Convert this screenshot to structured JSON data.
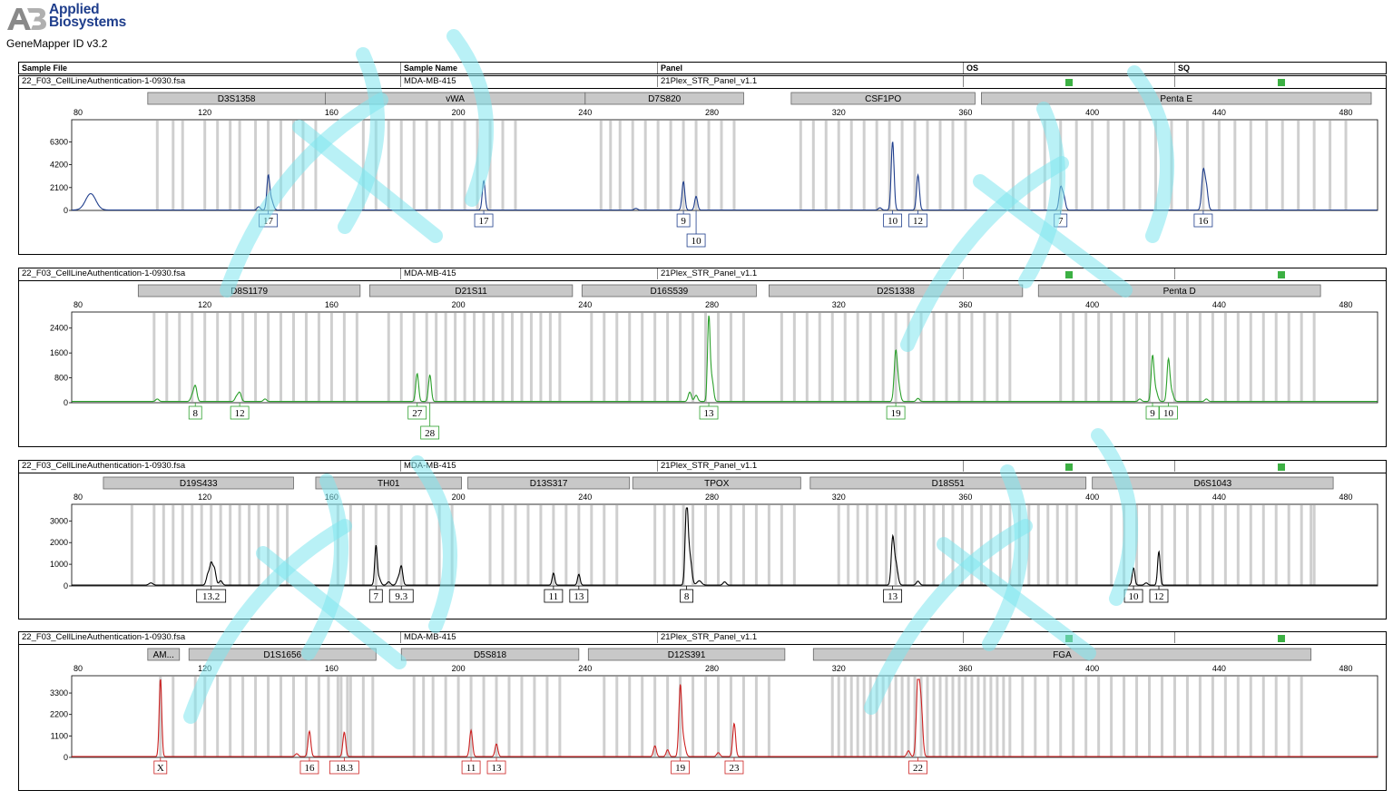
{
  "app": {
    "brand_line1": "Applied",
    "brand_line2": "Biosystems",
    "software": "GeneMapper ID v3.2"
  },
  "header": {
    "columns": [
      "Sample File",
      "Sample Name",
      "Panel",
      "OS",
      "SQ"
    ]
  },
  "x_ticks": [
    80,
    120,
    160,
    200,
    240,
    280,
    320,
    360,
    400,
    440,
    480
  ],
  "x_range": [
    78,
    490
  ],
  "colors": {
    "blue": "#1f3e8c",
    "green": "#2ca02c",
    "black": "#000000",
    "red": "#cc2222",
    "bin": "#cfcfcf",
    "marker_box": "#c8c8c8",
    "status_green": "#3cb043"
  },
  "panels": [
    {
      "sample_file": "22_F03_CellLineAuthentication-1-0930.fsa",
      "sample_name": "MDA-MB-415",
      "panel": "21Plex_STR_Panel_v1.1"
    },
    {
      "sample_file": "22_F03_CellLineAuthentication-1-0930.fsa",
      "sample_name": "MDA-MB-415",
      "panel": "21Plex_STR_Panel_v1.1"
    },
    {
      "sample_file": "22_F03_CellLineAuthentication-1-0930.fsa",
      "sample_name": "MDA-MB-415",
      "panel": "21Plex_STR_Panel_v1.1"
    },
    {
      "sample_file": "22_F03_CellLineAuthentication-1-0930.fsa",
      "sample_name": "MDA-MB-415",
      "panel": "21Plex_STR_Panel_v1.1"
    }
  ],
  "chart_data": [
    {
      "type": "line",
      "dye": "blue",
      "ylim": [
        0,
        8000
      ],
      "y_ticks": [
        0,
        2100,
        4200,
        6300
      ],
      "markers": [
        {
          "name": "D3S1358",
          "start": 102,
          "end": 158
        },
        {
          "name": "vWA",
          "start": 158,
          "end": 240
        },
        {
          "name": "D7S820",
          "start": 240,
          "end": 290
        },
        {
          "name": "CSF1PO",
          "start": 305,
          "end": 363
        },
        {
          "name": "Penta E",
          "start": 365,
          "end": 488
        }
      ],
      "bins": [
        105,
        110,
        113,
        120,
        124,
        128,
        131,
        136,
        140,
        144,
        148,
        151,
        155,
        170,
        174,
        178,
        182,
        186,
        190,
        194,
        198,
        202,
        206,
        210,
        214,
        218,
        245,
        248,
        251,
        255,
        259,
        263,
        267,
        271,
        275,
        279,
        283,
        287,
        308,
        312,
        316,
        320,
        324,
        328,
        332,
        336,
        340,
        344,
        348,
        352,
        356,
        360,
        375,
        380,
        385,
        390,
        395,
        400,
        405,
        410,
        415,
        420,
        425,
        430,
        435,
        440,
        445,
        450,
        455,
        460,
        465,
        470,
        475,
        480
      ],
      "peaks": [
        {
          "x": 84,
          "y": 1500,
          "w": 1.6
        },
        {
          "x": 140,
          "y": 3000,
          "w": 0.45
        },
        {
          "x": 141,
          "y": 900,
          "w": 0.6
        },
        {
          "x": 137,
          "y": 300,
          "w": 0.5
        },
        {
          "x": 208,
          "y": 2700,
          "w": 0.45
        },
        {
          "x": 271,
          "y": 2600,
          "w": 0.45
        },
        {
          "x": 275,
          "y": 1250,
          "w": 0.45
        },
        {
          "x": 256,
          "y": 150,
          "w": 0.5
        },
        {
          "x": 337,
          "y": 6300,
          "w": 0.45
        },
        {
          "x": 345,
          "y": 3200,
          "w": 0.45
        },
        {
          "x": 333,
          "y": 200,
          "w": 0.5
        },
        {
          "x": 390,
          "y": 2000,
          "w": 0.5
        },
        {
          "x": 391,
          "y": 1200,
          "w": 0.5
        },
        {
          "x": 435,
          "y": 3500,
          "w": 0.5
        },
        {
          "x": 436,
          "y": 2000,
          "w": 0.5
        }
      ],
      "alleles": [
        {
          "label": "17",
          "x": 140,
          "row": 0
        },
        {
          "label": "17",
          "x": 208,
          "row": 0
        },
        {
          "label": "9",
          "x": 271,
          "row": 0
        },
        {
          "label": "10",
          "x": 275,
          "row": 1
        },
        {
          "label": "10",
          "x": 337,
          "row": 0
        },
        {
          "label": "12",
          "x": 345,
          "row": 0
        },
        {
          "label": "7",
          "x": 390,
          "row": 0
        },
        {
          "label": "16",
          "x": 435,
          "row": 0
        }
      ]
    },
    {
      "type": "line",
      "dye": "green",
      "ylim": [
        0,
        2800
      ],
      "y_ticks": [
        0,
        800,
        1600,
        2400
      ],
      "markers": [
        {
          "name": "D8S1179",
          "start": 99,
          "end": 169
        },
        {
          "name": "D21S11",
          "start": 172,
          "end": 236
        },
        {
          "name": "D16S539",
          "start": 239,
          "end": 294
        },
        {
          "name": "D2S1338",
          "start": 298,
          "end": 378
        },
        {
          "name": "Penta D",
          "start": 383,
          "end": 472
        }
      ],
      "bins": [
        104,
        108,
        112,
        116,
        120,
        124,
        128,
        132,
        136,
        140,
        144,
        148,
        152,
        156,
        160,
        164,
        168,
        178,
        182,
        186,
        190,
        193,
        196,
        199,
        202,
        205,
        208,
        211,
        214,
        217,
        220,
        223,
        226,
        229,
        232,
        242,
        246,
        250,
        254,
        258,
        262,
        266,
        270,
        274,
        278,
        282,
        286,
        290,
        302,
        306,
        310,
        314,
        318,
        322,
        326,
        330,
        334,
        338,
        342,
        346,
        350,
        354,
        358,
        362,
        366,
        370,
        374,
        390,
        394,
        398,
        402,
        406,
        410,
        414,
        418,
        422,
        426,
        430,
        434,
        438,
        442,
        446,
        450,
        454,
        458,
        462,
        466,
        470
      ],
      "peaks": [
        {
          "x": 117,
          "y": 500,
          "w": 0.5
        },
        {
          "x": 116,
          "y": 180,
          "w": 0.5
        },
        {
          "x": 131,
          "y": 280,
          "w": 0.5
        },
        {
          "x": 130,
          "y": 150,
          "w": 0.5
        },
        {
          "x": 105,
          "y": 80,
          "w": 0.5
        },
        {
          "x": 139,
          "y": 80,
          "w": 0.5
        },
        {
          "x": 187,
          "y": 900,
          "w": 0.45
        },
        {
          "x": 191,
          "y": 850,
          "w": 0.45
        },
        {
          "x": 279,
          "y": 2700,
          "w": 0.4
        },
        {
          "x": 280,
          "y": 700,
          "w": 0.5
        },
        {
          "x": 273,
          "y": 300,
          "w": 0.5
        },
        {
          "x": 275,
          "y": 200,
          "w": 0.5
        },
        {
          "x": 338,
          "y": 1600,
          "w": 0.5
        },
        {
          "x": 339,
          "y": 400,
          "w": 0.5
        },
        {
          "x": 345,
          "y": 100,
          "w": 0.5
        },
        {
          "x": 419,
          "y": 1400,
          "w": 0.45
        },
        {
          "x": 424,
          "y": 1300,
          "w": 0.45
        },
        {
          "x": 420,
          "y": 350,
          "w": 0.6
        },
        {
          "x": 425,
          "y": 300,
          "w": 0.6
        },
        {
          "x": 415,
          "y": 80,
          "w": 0.5
        },
        {
          "x": 436,
          "y": 80,
          "w": 0.5
        }
      ],
      "alleles": [
        {
          "label": "8",
          "x": 117,
          "row": 0
        },
        {
          "label": "12",
          "x": 131,
          "row": 0
        },
        {
          "label": "27",
          "x": 187,
          "row": 0
        },
        {
          "label": "28",
          "x": 191,
          "row": 1
        },
        {
          "label": "13",
          "x": 279,
          "row": 0
        },
        {
          "label": "19",
          "x": 338,
          "row": 0
        },
        {
          "label": "9",
          "x": 419,
          "row": 0
        },
        {
          "label": "10",
          "x": 424,
          "row": 0
        }
      ]
    },
    {
      "type": "line",
      "dye": "black",
      "ylim": [
        0,
        3600
      ],
      "y_ticks": [
        0,
        1000,
        2000,
        3000
      ],
      "markers": [
        {
          "name": "D19S433",
          "start": 88,
          "end": 148
        },
        {
          "name": "TH01",
          "start": 155,
          "end": 201
        },
        {
          "name": "D13S317",
          "start": 203,
          "end": 254
        },
        {
          "name": "TPOX",
          "start": 255,
          "end": 308
        },
        {
          "name": "D18S51",
          "start": 311,
          "end": 398
        },
        {
          "name": "D6S1043",
          "start": 400,
          "end": 476
        }
      ],
      "bins": [
        97,
        104,
        107,
        110,
        113,
        116,
        119,
        122,
        125,
        128,
        131,
        134,
        137,
        140,
        143,
        146,
        162,
        166,
        170,
        174,
        178,
        182,
        186,
        190,
        194,
        198,
        210,
        214,
        218,
        222,
        226,
        230,
        234,
        238,
        242,
        246,
        250,
        262,
        265,
        268,
        271,
        274,
        278,
        282,
        286,
        290,
        294,
        298,
        302,
        306,
        320,
        323,
        326,
        329,
        332,
        335,
        338,
        341,
        344,
        347,
        350,
        353,
        356,
        359,
        362,
        365,
        368,
        371,
        374,
        377,
        380,
        383,
        386,
        389,
        392,
        395,
        406,
        410,
        414,
        418,
        422,
        426,
        430,
        434,
        438,
        442,
        446,
        450,
        454,
        458,
        462,
        466,
        469,
        470
      ],
      "peaks": [
        {
          "x": 122,
          "y": 900,
          "w": 0.45
        },
        {
          "x": 121,
          "y": 500,
          "w": 0.5
        },
        {
          "x": 123,
          "y": 750,
          "w": 0.5
        },
        {
          "x": 125,
          "y": 200,
          "w": 0.5
        },
        {
          "x": 103,
          "y": 100,
          "w": 0.6
        },
        {
          "x": 174,
          "y": 1800,
          "w": 0.4
        },
        {
          "x": 175,
          "y": 300,
          "w": 0.5
        },
        {
          "x": 182,
          "y": 850,
          "w": 0.45
        },
        {
          "x": 181,
          "y": 300,
          "w": 0.5
        },
        {
          "x": 178,
          "y": 150,
          "w": 0.5
        },
        {
          "x": 230,
          "y": 550,
          "w": 0.4
        },
        {
          "x": 238,
          "y": 500,
          "w": 0.4
        },
        {
          "x": 272,
          "y": 3600,
          "w": 0.45
        },
        {
          "x": 273,
          "y": 1300,
          "w": 0.6
        },
        {
          "x": 276,
          "y": 200,
          "w": 0.7
        },
        {
          "x": 284,
          "y": 150,
          "w": 0.5
        },
        {
          "x": 337,
          "y": 2000,
          "w": 0.45
        },
        {
          "x": 338,
          "y": 1000,
          "w": 0.6
        },
        {
          "x": 345,
          "y": 180,
          "w": 0.5
        },
        {
          "x": 413,
          "y": 800,
          "w": 0.4
        },
        {
          "x": 421,
          "y": 1550,
          "w": 0.4
        },
        {
          "x": 417,
          "y": 100,
          "w": 0.5
        }
      ],
      "alleles": [
        {
          "label": "13.2",
          "x": 122,
          "row": 0
        },
        {
          "label": "7",
          "x": 174,
          "row": 0
        },
        {
          "label": "9.3",
          "x": 182,
          "row": 0
        },
        {
          "label": "11",
          "x": 230,
          "row": 0
        },
        {
          "label": "13",
          "x": 238,
          "row": 0
        },
        {
          "label": "8",
          "x": 272,
          "row": 0
        },
        {
          "label": "13",
          "x": 337,
          "row": 0
        },
        {
          "label": "10",
          "x": 413,
          "row": 0
        },
        {
          "label": "12",
          "x": 421,
          "row": 0
        }
      ]
    },
    {
      "type": "line",
      "dye": "red",
      "ylim": [
        0,
        4000
      ],
      "y_ticks": [
        0,
        1100,
        2200,
        3300
      ],
      "markers": [
        {
          "name": "AM...",
          "start": 102,
          "end": 112
        },
        {
          "name": "D1S1656",
          "start": 115,
          "end": 174
        },
        {
          "name": "D5S818",
          "start": 182,
          "end": 238
        },
        {
          "name": "D12S391",
          "start": 241,
          "end": 303
        },
        {
          "name": "FGA",
          "start": 312,
          "end": 469
        }
      ],
      "bins": [
        106,
        110,
        117,
        120,
        124,
        128,
        132,
        136,
        140,
        144,
        148,
        152,
        156,
        159,
        162,
        163,
        165,
        166,
        170,
        173,
        186,
        189,
        192,
        196,
        200,
        204,
        208,
        212,
        216,
        220,
        224,
        228,
        232,
        246,
        250,
        254,
        258,
        262,
        266,
        270,
        274,
        278,
        282,
        286,
        290,
        294,
        298,
        318,
        320,
        322,
        324,
        326,
        328,
        330,
        332,
        334,
        336,
        338,
        340,
        342,
        344,
        346,
        348,
        350,
        352,
        354,
        356,
        358,
        360,
        362,
        364,
        366,
        368,
        370,
        372,
        374,
        378,
        382,
        386,
        390,
        394,
        398,
        402,
        406,
        410,
        414,
        418,
        422,
        426,
        430,
        434,
        438,
        442,
        446,
        450,
        454,
        458,
        462,
        466
      ],
      "peaks": [
        {
          "x": 106,
          "y": 4000,
          "w": 0.4
        },
        {
          "x": 153,
          "y": 1300,
          "w": 0.45
        },
        {
          "x": 149,
          "y": 150,
          "w": 0.5
        },
        {
          "x": 164,
          "y": 1250,
          "w": 0.45
        },
        {
          "x": 204,
          "y": 1350,
          "w": 0.45
        },
        {
          "x": 212,
          "y": 650,
          "w": 0.45
        },
        {
          "x": 262,
          "y": 550,
          "w": 0.45
        },
        {
          "x": 266,
          "y": 350,
          "w": 0.45
        },
        {
          "x": 270,
          "y": 3500,
          "w": 0.45
        },
        {
          "x": 271,
          "y": 800,
          "w": 0.6
        },
        {
          "x": 282,
          "y": 200,
          "w": 0.5
        },
        {
          "x": 287,
          "y": 1700,
          "w": 0.45
        },
        {
          "x": 345,
          "y": 4000,
          "w": 0.5
        },
        {
          "x": 346,
          "y": 2500,
          "w": 0.5
        },
        {
          "x": 342,
          "y": 300,
          "w": 0.5
        }
      ],
      "alleles": [
        {
          "label": "X",
          "x": 106,
          "row": 0
        },
        {
          "label": "16",
          "x": 153,
          "row": 0
        },
        {
          "label": "18.3",
          "x": 164,
          "row": 0
        },
        {
          "label": "11",
          "x": 204,
          "row": 0
        },
        {
          "label": "13",
          "x": 212,
          "row": 0
        },
        {
          "label": "19",
          "x": 270,
          "row": 0
        },
        {
          "label": "23",
          "x": 287,
          "row": 0
        },
        {
          "label": "22",
          "x": 345,
          "row": 0
        }
      ]
    }
  ]
}
